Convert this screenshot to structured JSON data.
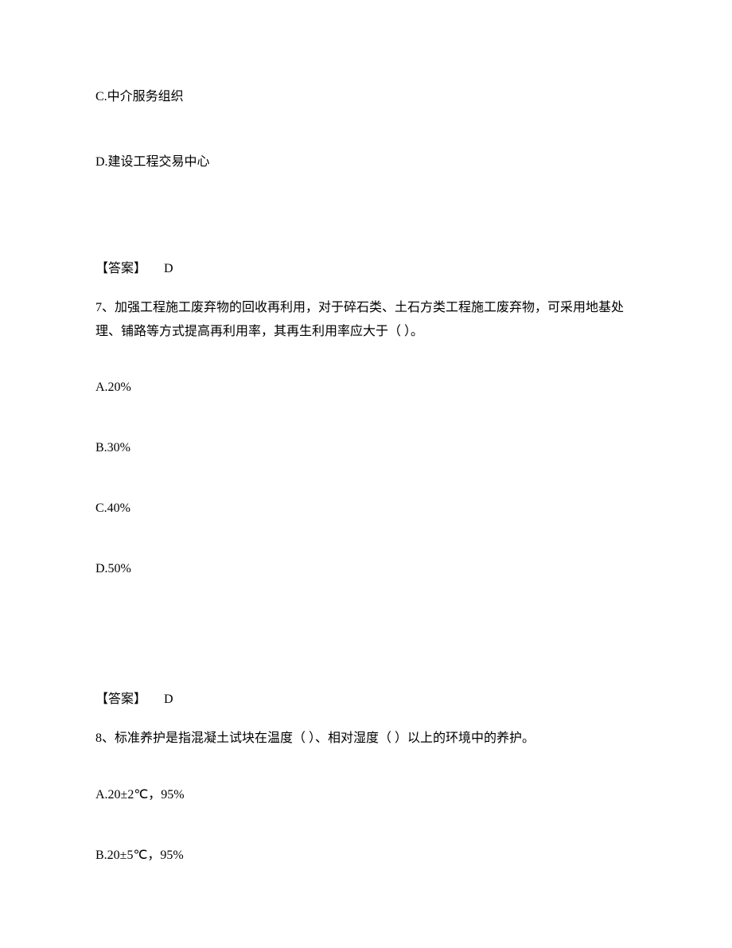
{
  "top_options": {
    "c": "C.中介服务组织",
    "d": "D.建设工程交易中心"
  },
  "q6_answer": {
    "label": "【答案】",
    "value": "D"
  },
  "q7": {
    "stem": "7、加强工程施工废弃物的回收再利用，对于碎石类、土石方类工程施工废弃物，可采用地基处理、铺路等方式提高再利用率，其再生利用率应大于（ ）。",
    "options": {
      "a": "A.20%",
      "b": "B.30%",
      "c": "C.40%",
      "d": "D.50%"
    },
    "answer": {
      "label": "【答案】",
      "value": "D"
    }
  },
  "q8": {
    "stem": "8、标准养护是指混凝土试块在温度（ ）、相对湿度（ ）以上的环境中的养护。",
    "options": {
      "a": "A.20±2℃，95%",
      "b": "B.20±5℃，95%"
    }
  },
  "colors": {
    "text": "#000000",
    "background": "#ffffff",
    "light_text": "#7a7a7a"
  },
  "typography": {
    "font_family": "SimSun",
    "font_size_pt": 12,
    "line_height": 1.5
  }
}
